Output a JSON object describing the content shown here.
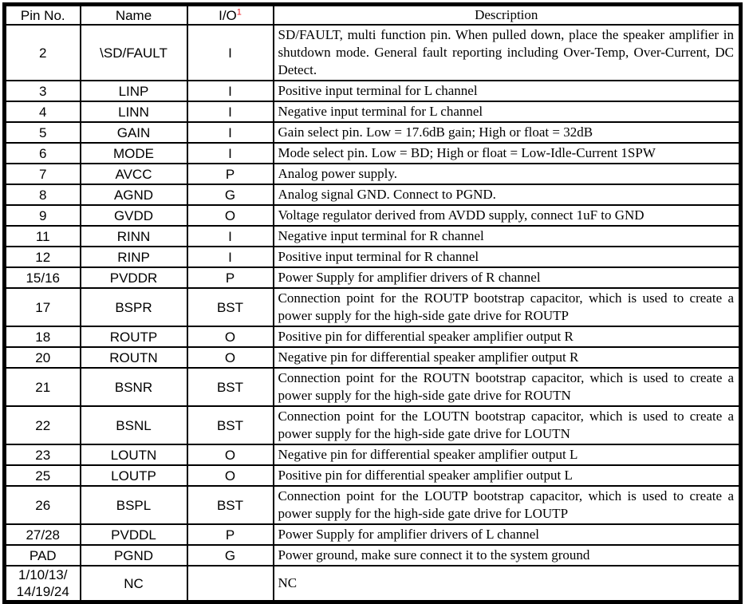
{
  "table": {
    "header": {
      "pin": "Pin No.",
      "name": "Name",
      "io": "I/O",
      "io_footnote": "1",
      "desc": "Description"
    },
    "rows": [
      {
        "pin": "2",
        "name": "\\SD/FAULT",
        "io": "I",
        "desc": "SD/FAULT, multi function pin. When pulled down, place the speaker amplifier in shutdown mode. General fault reporting including Over-Temp, Over-Current, DC Detect."
      },
      {
        "pin": "3",
        "name": "LINP",
        "io": "I",
        "desc": "Positive input terminal for L channel"
      },
      {
        "pin": "4",
        "name": "LINN",
        "io": "I",
        "desc": "Negative input terminal for L channel"
      },
      {
        "pin": "5",
        "name": "GAIN",
        "io": "I",
        "desc": "Gain select pin. Low = 17.6dB gain; High or float = 32dB"
      },
      {
        "pin": "6",
        "name": "MODE",
        "io": "I",
        "desc": "Mode select pin. Low = BD; High or float = Low-Idle-Current 1SPW"
      },
      {
        "pin": "7",
        "name": "AVCC",
        "io": "P",
        "desc": "Analog power supply."
      },
      {
        "pin": "8",
        "name": "AGND",
        "io": "G",
        "desc": "Analog signal GND. Connect to PGND."
      },
      {
        "pin": "9",
        "name": "GVDD",
        "io": "O",
        "desc": "Voltage regulator derived from AVDD supply, connect 1uF to GND"
      },
      {
        "pin": "11",
        "name": "RINN",
        "io": "I",
        "desc": "Negative input terminal for R channel"
      },
      {
        "pin": "12",
        "name": "RINP",
        "io": "I",
        "desc": "Positive input terminal for R channel"
      },
      {
        "pin": "15/16",
        "name": "PVDDR",
        "io": "P",
        "desc": "Power Supply for amplifier drivers of R channel"
      },
      {
        "pin": "17",
        "name": "BSPR",
        "io": "BST",
        "desc": "Connection point for the ROUTP bootstrap capacitor, which is used to create a power supply for the high-side gate drive for ROUTP"
      },
      {
        "pin": "18",
        "name": "ROUTP",
        "io": "O",
        "desc": "Positive pin for differential speaker amplifier output R"
      },
      {
        "pin": "20",
        "name": "ROUTN",
        "io": "O",
        "desc": "Negative pin for differential speaker amplifier output R"
      },
      {
        "pin": "21",
        "name": "BSNR",
        "io": "BST",
        "desc": "Connection point for the ROUTN bootstrap capacitor, which is used to create a power supply for the high-side gate drive for ROUTN"
      },
      {
        "pin": "22",
        "name": "BSNL",
        "io": "BST",
        "desc": "Connection point for the LOUTN bootstrap capacitor, which is used to create a power supply for the high-side gate drive for LOUTN"
      },
      {
        "pin": "23",
        "name": "LOUTN",
        "io": "O",
        "desc": "Negative pin for differential speaker amplifier output L"
      },
      {
        "pin": "25",
        "name": "LOUTP",
        "io": "O",
        "desc": "Positive pin for differential speaker amplifier output L"
      },
      {
        "pin": "26",
        "name": "BSPL",
        "io": "BST",
        "desc": "Connection point for the LOUTP bootstrap capacitor, which is used to create a power supply for the high-side gate drive for LOUTP"
      },
      {
        "pin": "27/28",
        "name": "PVDDL",
        "io": "P",
        "desc": "Power Supply for amplifier drivers of L channel"
      },
      {
        "pin": "PAD",
        "name": "PGND",
        "io": "G",
        "desc": "Power ground, make sure connect it to the system ground"
      },
      {
        "pin": "1/10/13/\n14/19/24",
        "name": "NC",
        "io": "",
        "desc": "NC"
      }
    ]
  },
  "colors": {
    "footnote_red": "#ee1c24",
    "border": "#000000",
    "text": "#000000",
    "background": "#ffffff"
  }
}
